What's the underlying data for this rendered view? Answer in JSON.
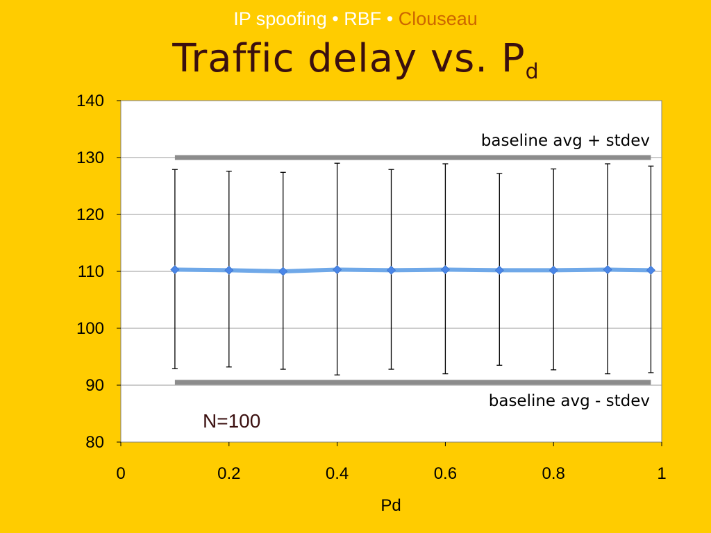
{
  "slide": {
    "header": {
      "part1": "IP spoofing",
      "sep1": " • ",
      "part2": "RBF",
      "sep2": " • ",
      "part3": "Clouseau"
    },
    "title_main": "Traffic delay vs. P",
    "title_sub": "d",
    "colors": {
      "background": "#FFCC00",
      "header_white": "#FFFFFF",
      "header_orange": "#CC6600",
      "title": "#3A0F0F",
      "series_line": "#6FA8E8",
      "series_marker": "#4A86E8",
      "baseline": "#8C8C8C"
    }
  },
  "chart_data": {
    "type": "line",
    "title": "",
    "xlabel": "Pd",
    "ylabel": "",
    "xlim": [
      0,
      1
    ],
    "ylim": [
      80,
      140
    ],
    "x_ticks": [
      "0",
      "0.2",
      "0.4",
      "0.6",
      "0.8",
      "1"
    ],
    "y_ticks": [
      "140",
      "130",
      "120",
      "110",
      "100",
      "90",
      "80"
    ],
    "grid": "horizontal",
    "legend": "none",
    "series": [
      {
        "x": [
          0.1,
          0.2,
          0.3,
          0.4,
          0.5,
          0.6,
          0.7,
          0.8,
          0.9,
          0.98
        ],
        "y": [
          110.3,
          110.2,
          110.0,
          110.3,
          110.2,
          110.3,
          110.2,
          110.2,
          110.3,
          110.2
        ],
        "err_upper": [
          127.9,
          127.6,
          127.4,
          129.0,
          127.9,
          128.9,
          127.2,
          128.0,
          128.9,
          128.5
        ],
        "err_lower": [
          92.9,
          93.2,
          92.8,
          91.8,
          92.8,
          92.0,
          93.5,
          92.7,
          92.0,
          92.2
        ]
      }
    ],
    "reference_lines": [
      {
        "label": "baseline avg + stdev",
        "y": 130,
        "x_start": 0.1,
        "x_end": 0.98
      },
      {
        "label": "baseline avg - stdev",
        "y": 90.5,
        "x_start": 0.1,
        "x_end": 0.98
      }
    ],
    "annotation": "N=100"
  }
}
